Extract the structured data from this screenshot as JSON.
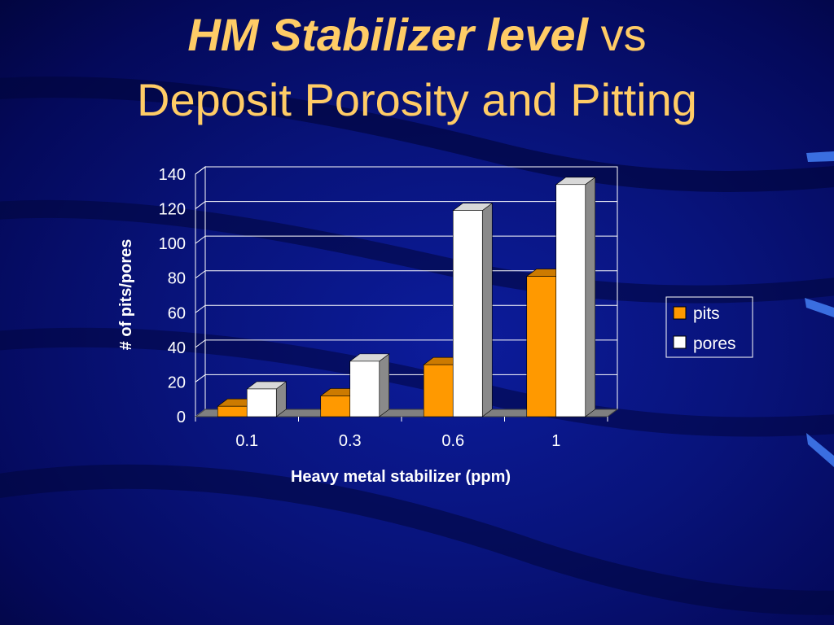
{
  "slide": {
    "title_emphasis": "HM Stabilizer level",
    "title_connector": " vs",
    "title_line2": "Deposit Porosity and Pitting"
  },
  "colors": {
    "title": "#ffcc66",
    "pits": "#ff9900",
    "pores": "#ffffff",
    "background": "#08137a"
  },
  "chart_data": {
    "type": "bar",
    "categories": [
      "0.1",
      "0.3",
      "0.6",
      "1"
    ],
    "series": [
      {
        "name": "pits",
        "values": [
          6,
          12,
          30,
          81
        ]
      },
      {
        "name": "pores",
        "values": [
          16,
          32,
          119,
          134
        ]
      }
    ],
    "xlabel": "Heavy metal stabilizer (ppm)",
    "ylabel": "# of pits/pores",
    "ylim": [
      0,
      140
    ],
    "yticks": [
      0,
      20,
      40,
      60,
      80,
      100,
      120,
      140
    ],
    "grid": true,
    "legend_position": "right",
    "style": "3d-clustered-column"
  }
}
